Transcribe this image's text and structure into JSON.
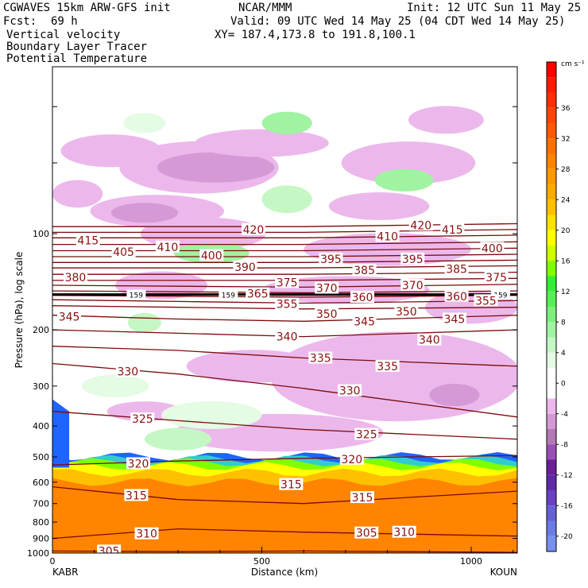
{
  "header": {
    "model": "CGWAVES 15km ARW-GFS init",
    "org": "NCAR/MMM",
    "init": "Init: 12 UTC Sun 11 May 25",
    "fcst_label": "Fcst:",
    "fcst_value": "69 h",
    "valid": "Valid: 09 UTC Wed 14 May 25 (04 CDT Wed 14 May 25)",
    "xy": "XY= 187.4,173.8 to 191.8,100.1",
    "line1": "Vertical velocity",
    "line2": "Boundary Layer Tracer",
    "line3": "Potential Temperature",
    "line3_color": "#8b1a1a"
  },
  "chart_data": {
    "type": "contour cross-section",
    "xlabel": "Distance (km)",
    "ylabel": "Pressure (hPa), log scale",
    "xlim": [
      0,
      1110
    ],
    "ylim": [
      1000,
      30
    ],
    "x_ticks": [
      {
        "value": 0,
        "label": "0"
      },
      {
        "value": 500,
        "label": "500"
      },
      {
        "value": 1000,
        "label": "1000"
      }
    ],
    "y_ticks": [
      {
        "value": 100,
        "label": "100"
      },
      {
        "value": 200,
        "label": "200"
      },
      {
        "value": 300,
        "label": "300"
      },
      {
        "value": 400,
        "label": "400"
      },
      {
        "value": 500,
        "label": "500"
      },
      {
        "value": 600,
        "label": "600"
      },
      {
        "value": 700,
        "label": "700"
      },
      {
        "value": 800,
        "label": "800"
      },
      {
        "value": 900,
        "label": "900"
      },
      {
        "value": 1000,
        "label": "1000"
      }
    ],
    "endpoints": {
      "left": "KABR",
      "right": "KOUN"
    },
    "colorbar": {
      "units": "cm s⁻¹",
      "range": [
        -22,
        42
      ],
      "labels": [
        36,
        32,
        28,
        24,
        20,
        16,
        12,
        8,
        4,
        0,
        -4,
        -8,
        -12,
        -16,
        -20
      ],
      "bands": [
        {
          "from": 40,
          "to": 42,
          "color": "#ff0000"
        },
        {
          "from": 38,
          "to": 40,
          "color": "#ff1a00"
        },
        {
          "from": 36,
          "to": 38,
          "color": "#ff3000"
        },
        {
          "from": 34,
          "to": 36,
          "color": "#ff4600"
        },
        {
          "from": 32,
          "to": 34,
          "color": "#ff5a00"
        },
        {
          "from": 30,
          "to": 32,
          "color": "#ff7000"
        },
        {
          "from": 28,
          "to": 30,
          "color": "#ff8400"
        },
        {
          "from": 26,
          "to": 28,
          "color": "#ff9900"
        },
        {
          "from": 24,
          "to": 26,
          "color": "#ffaa00"
        },
        {
          "from": 22,
          "to": 24,
          "color": "#ffc000"
        },
        {
          "from": 20,
          "to": 22,
          "color": "#ffe000"
        },
        {
          "from": 18,
          "to": 20,
          "color": "#ffff00"
        },
        {
          "from": 16,
          "to": 18,
          "color": "#ccff00"
        },
        {
          "from": 14,
          "to": 16,
          "color": "#80ff00"
        },
        {
          "from": 12,
          "to": 14,
          "color": "#33ee33"
        },
        {
          "from": 10,
          "to": 12,
          "color": "#55f055"
        },
        {
          "from": 8,
          "to": 10,
          "color": "#7cf07c"
        },
        {
          "from": 6,
          "to": 8,
          "color": "#a0f3a0"
        },
        {
          "from": 4,
          "to": 6,
          "color": "#c4f7c4"
        },
        {
          "from": 2,
          "to": 4,
          "color": "#e4fbe4"
        },
        {
          "from": -2,
          "to": 2,
          "color": "#ffffff"
        },
        {
          "from": -4,
          "to": -2,
          "color": "#ecb8ec"
        },
        {
          "from": -6,
          "to": -4,
          "color": "#d59ad5"
        },
        {
          "from": -8,
          "to": -6,
          "color": "#b478b4"
        },
        {
          "from": -10,
          "to": -8,
          "color": "#9a4fb4"
        },
        {
          "from": -12,
          "to": -10,
          "color": "#6a1e9a"
        },
        {
          "from": -14,
          "to": -12,
          "color": "#5e2aa8"
        },
        {
          "from": -16,
          "to": -14,
          "color": "#6a40c4"
        },
        {
          "from": -18,
          "to": -16,
          "color": "#6660d8"
        },
        {
          "from": -20,
          "to": -18,
          "color": "#6a7ce6"
        },
        {
          "from": -22,
          "to": -20,
          "color": "#7890f0"
        }
      ]
    },
    "theta_contours": [
      {
        "value": 305,
        "points": [
          [
            0,
            985
          ],
          [
            300,
            990
          ],
          [
            600,
            985
          ],
          [
            1110,
            995
          ]
        ]
      },
      {
        "value": 310,
        "points": [
          [
            0,
            900
          ],
          [
            300,
            840
          ],
          [
            600,
            860
          ],
          [
            1110,
            885
          ]
        ]
      },
      {
        "value": 315,
        "points": [
          [
            0,
            620
          ],
          [
            300,
            680
          ],
          [
            600,
            700
          ],
          [
            1110,
            640
          ]
        ]
      },
      {
        "value": 320,
        "points": [
          [
            0,
            530
          ],
          [
            300,
            515
          ],
          [
            600,
            505
          ],
          [
            1110,
            495
          ]
        ]
      },
      {
        "value": 325,
        "points": [
          [
            0,
            360
          ],
          [
            300,
            385
          ],
          [
            600,
            410
          ],
          [
            1110,
            440
          ]
        ]
      },
      {
        "value": 330,
        "points": [
          [
            0,
            255
          ],
          [
            300,
            275
          ],
          [
            600,
            305
          ],
          [
            1110,
            375
          ]
        ]
      },
      {
        "value": 335,
        "points": [
          [
            0,
            225
          ],
          [
            300,
            232
          ],
          [
            600,
            245
          ],
          [
            1110,
            260
          ]
        ]
      },
      {
        "value": 340,
        "points": [
          [
            0,
            200
          ],
          [
            300,
            205
          ],
          [
            600,
            210
          ],
          [
            1110,
            200
          ]
        ]
      },
      {
        "value": 345,
        "points": [
          [
            0,
            180
          ],
          [
            300,
            185
          ],
          [
            600,
            188
          ],
          [
            1110,
            180
          ]
        ]
      },
      {
        "value": 350,
        "points": [
          [
            0,
            168
          ],
          [
            300,
            170
          ],
          [
            600,
            172
          ],
          [
            1110,
            170
          ]
        ]
      },
      {
        "value": 355,
        "points": [
          [
            0,
            161
          ],
          [
            300,
            163
          ],
          [
            600,
            165
          ],
          [
            1110,
            162
          ]
        ]
      },
      {
        "value": 360,
        "points": [
          [
            0,
            156
          ],
          [
            300,
            157
          ],
          [
            600,
            158
          ],
          [
            1110,
            156
          ]
        ]
      },
      {
        "value": 365,
        "points": [
          [
            0,
            151
          ],
          [
            300,
            152
          ],
          [
            600,
            153
          ],
          [
            1110,
            151
          ]
        ]
      },
      {
        "value": 370,
        "points": [
          [
            0,
            145
          ],
          [
            300,
            146
          ],
          [
            600,
            147
          ],
          [
            1110,
            144
          ]
        ]
      },
      {
        "value": 375,
        "points": [
          [
            0,
            140
          ],
          [
            300,
            140
          ],
          [
            600,
            140
          ],
          [
            1110,
            138
          ]
        ]
      },
      {
        "value": 380,
        "points": [
          [
            0,
            134
          ],
          [
            300,
            134
          ],
          [
            600,
            134
          ],
          [
            1110,
            132
          ]
        ]
      },
      {
        "value": 385,
        "points": [
          [
            0,
            128
          ],
          [
            300,
            128
          ],
          [
            600,
            128
          ],
          [
            1110,
            126
          ]
        ]
      },
      {
        "value": 390,
        "points": [
          [
            0,
            123
          ],
          [
            300,
            123
          ],
          [
            600,
            123
          ],
          [
            1110,
            121
          ]
        ]
      },
      {
        "value": 395,
        "points": [
          [
            0,
            118
          ],
          [
            300,
            118
          ],
          [
            600,
            118
          ],
          [
            1110,
            116
          ]
        ]
      },
      {
        "value": 400,
        "points": [
          [
            0,
            113
          ],
          [
            300,
            113
          ],
          [
            600,
            113
          ],
          [
            1110,
            111
          ]
        ]
      },
      {
        "value": 405,
        "points": [
          [
            0,
            108
          ],
          [
            300,
            108
          ],
          [
            600,
            108
          ],
          [
            1110,
            106
          ]
        ]
      },
      {
        "value": 410,
        "points": [
          [
            0,
            103
          ],
          [
            300,
            103
          ],
          [
            600,
            103
          ],
          [
            1110,
            101
          ]
        ]
      },
      {
        "value": 415,
        "points": [
          [
            0,
            99
          ],
          [
            300,
            99
          ],
          [
            600,
            99
          ],
          [
            1110,
            97
          ]
        ]
      },
      {
        "value": 420,
        "points": [
          [
            0,
            95
          ],
          [
            300,
            95
          ],
          [
            600,
            95
          ],
          [
            1110,
            93
          ]
        ]
      }
    ],
    "theta_labels": [
      {
        "text": "305",
        "x": 135,
        "p": 985
      },
      {
        "text": "310",
        "x": 225,
        "p": 870
      },
      {
        "text": "305",
        "x": 750,
        "p": 865
      },
      {
        "text": "310",
        "x": 840,
        "p": 860
      },
      {
        "text": "315",
        "x": 200,
        "p": 660
      },
      {
        "text": "315",
        "x": 570,
        "p": 610
      },
      {
        "text": "315",
        "x": 740,
        "p": 670
      },
      {
        "text": "320",
        "x": 205,
        "p": 525
      },
      {
        "text": "320",
        "x": 715,
        "p": 508
      },
      {
        "text": "325",
        "x": 215,
        "p": 380
      },
      {
        "text": "325",
        "x": 750,
        "p": 425
      },
      {
        "text": "330",
        "x": 180,
        "p": 270
      },
      {
        "text": "330",
        "x": 710,
        "p": 310
      },
      {
        "text": "335",
        "x": 640,
        "p": 245
      },
      {
        "text": "335",
        "x": 800,
        "p": 260
      },
      {
        "text": "340",
        "x": 560,
        "p": 210
      },
      {
        "text": "340",
        "x": 900,
        "p": 215
      },
      {
        "text": "345",
        "x": 40,
        "p": 182
      },
      {
        "text": "345",
        "x": 745,
        "p": 188
      },
      {
        "text": "345",
        "x": 960,
        "p": 185
      },
      {
        "text": "350",
        "x": 655,
        "p": 178
      },
      {
        "text": "350",
        "x": 845,
        "p": 175
      },
      {
        "text": "355",
        "x": 560,
        "p": 166
      },
      {
        "text": "355",
        "x": 1035,
        "p": 162
      },
      {
        "text": "360",
        "x": 740,
        "p": 158
      },
      {
        "text": "360",
        "x": 965,
        "p": 157
      },
      {
        "text": "365",
        "x": 490,
        "p": 154
      },
      {
        "text": "370",
        "x": 655,
        "p": 148
      },
      {
        "text": "370",
        "x": 860,
        "p": 145
      },
      {
        "text": "375",
        "x": 560,
        "p": 142
      },
      {
        "text": "375",
        "x": 1060,
        "p": 137
      },
      {
        "text": "380",
        "x": 55,
        "p": 137
      },
      {
        "text": "385",
        "x": 745,
        "p": 130
      },
      {
        "text": "385",
        "x": 965,
        "p": 129
      },
      {
        "text": "390",
        "x": 460,
        "p": 127
      },
      {
        "text": "395",
        "x": 665,
        "p": 120
      },
      {
        "text": "395",
        "x": 860,
        "p": 120
      },
      {
        "text": "400",
        "x": 380,
        "p": 117
      },
      {
        "text": "400",
        "x": 1050,
        "p": 111
      },
      {
        "text": "405",
        "x": 170,
        "p": 114
      },
      {
        "text": "410",
        "x": 275,
        "p": 110
      },
      {
        "text": "410",
        "x": 800,
        "p": 102
      },
      {
        "text": "415",
        "x": 85,
        "p": 105
      },
      {
        "text": "415",
        "x": 955,
        "p": 97
      },
      {
        "text": "420",
        "x": 480,
        "p": 97
      },
      {
        "text": "420",
        "x": 880,
        "p": 94
      }
    ],
    "tropopause_line": {
      "label": "159",
      "p": 155
    },
    "velocity_regions": [
      {
        "cx": 350,
        "p": 62,
        "rx": 190,
        "rp": 0.18,
        "color": "#ecb8ec"
      },
      {
        "cx": 390,
        "p": 62,
        "rx": 140,
        "rp": 0.09,
        "color": "#d59ad5"
      },
      {
        "cx": 140,
        "p": 55,
        "rx": 120,
        "rp": 0.1,
        "color": "#ecb8ec"
      },
      {
        "cx": 500,
        "p": 52,
        "rx": 160,
        "rp": 0.08,
        "color": "#ecb8ec"
      },
      {
        "cx": 850,
        "p": 60,
        "rx": 160,
        "rp": 0.14,
        "color": "#ecb8ec"
      },
      {
        "cx": 940,
        "p": 44,
        "rx": 90,
        "rp": 0.08,
        "color": "#ecb8ec"
      },
      {
        "cx": 220,
        "p": 45,
        "rx": 50,
        "rp": 0.05,
        "color": "#e4fbe4"
      },
      {
        "cx": 560,
        "p": 45,
        "rx": 60,
        "rp": 0.06,
        "color": "#a0f3a0"
      },
      {
        "cx": 250,
        "p": 85,
        "rx": 160,
        "rp": 0.1,
        "color": "#ecb8ec"
      },
      {
        "cx": 220,
        "p": 86,
        "rx": 80,
        "rp": 0.05,
        "color": "#d59ad5"
      },
      {
        "cx": 560,
        "p": 78,
        "rx": 60,
        "rp": 0.08,
        "color": "#c4f7c4"
      },
      {
        "cx": 780,
        "p": 82,
        "rx": 120,
        "rp": 0.08,
        "color": "#ecb8ec"
      },
      {
        "cx": 840,
        "p": 68,
        "rx": 70,
        "rp": 0.06,
        "color": "#a0f3a0"
      },
      {
        "cx": 60,
        "p": 75,
        "rx": 60,
        "rp": 0.08,
        "color": "#ecb8ec"
      },
      {
        "cx": 360,
        "p": 100,
        "rx": 150,
        "rp": 0.1,
        "color": "#ecb8ec"
      },
      {
        "cx": 800,
        "p": 112,
        "rx": 200,
        "rp": 0.1,
        "color": "#ecb8ec"
      },
      {
        "cx": 380,
        "p": 115,
        "rx": 90,
        "rp": 0.05,
        "color": "#a0f3a0"
      },
      {
        "cx": 260,
        "p": 145,
        "rx": 110,
        "rp": 0.08,
        "color": "#ecb8ec"
      },
      {
        "cx": 700,
        "p": 150,
        "rx": 200,
        "rp": 0.08,
        "color": "#ecb8ec"
      },
      {
        "cx": 1000,
        "p": 170,
        "rx": 110,
        "rp": 0.1,
        "color": "#ecb8ec"
      },
      {
        "cx": 220,
        "p": 190,
        "rx": 40,
        "rp": 0.05,
        "color": "#c4f7c4"
      },
      {
        "cx": 820,
        "p": 280,
        "rx": 300,
        "rp": 0.35,
        "color": "#ecb8ec"
      },
      {
        "cx": 960,
        "p": 320,
        "rx": 60,
        "rp": 0.06,
        "color": "#d59ad5"
      },
      {
        "cx": 480,
        "p": 260,
        "rx": 160,
        "rp": 0.1,
        "color": "#ecb8ec"
      },
      {
        "cx": 150,
        "p": 300,
        "rx": 80,
        "rp": 0.06,
        "color": "#e4fbe4"
      },
      {
        "cx": 220,
        "p": 360,
        "rx": 90,
        "rp": 0.05,
        "color": "#ecb8ec"
      },
      {
        "cx": 540,
        "p": 420,
        "rx": 250,
        "rp": 0.12,
        "color": "#ecb8ec"
      },
      {
        "cx": 380,
        "p": 370,
        "rx": 120,
        "rp": 0.08,
        "color": "#e4fbe4"
      },
      {
        "cx": 300,
        "p": 440,
        "rx": 80,
        "rp": 0.06,
        "color": "#c4f7c4"
      }
    ],
    "tracer_layers": [
      {
        "top": 600,
        "color": "#ff8400"
      },
      {
        "top": 560,
        "color": "#ffc000"
      },
      {
        "top": 535,
        "color": "#ffff00"
      },
      {
        "top": 520,
        "color": "#80ff00"
      },
      {
        "top": 508,
        "color": "#33cccc"
      },
      {
        "top": 498,
        "color": "#1e64ff"
      }
    ]
  }
}
